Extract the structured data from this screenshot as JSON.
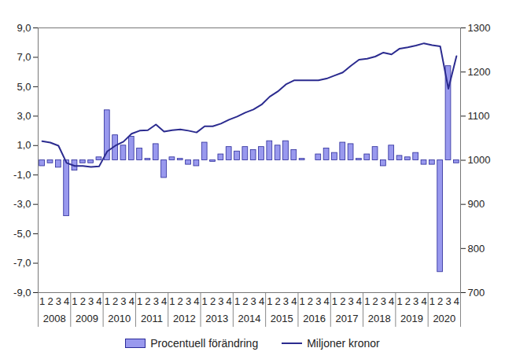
{
  "chart_data": {
    "type": "bar",
    "categories": [
      "1",
      "2",
      "3",
      "4",
      "1",
      "2",
      "3",
      "4",
      "1",
      "2",
      "3",
      "4",
      "1",
      "2",
      "3",
      "4",
      "1",
      "2",
      "3",
      "4",
      "1",
      "2",
      "3",
      "4",
      "1",
      "2",
      "3",
      "4",
      "1",
      "2",
      "3",
      "4",
      "1",
      "2",
      "3",
      "4",
      "1",
      "2",
      "3",
      "4",
      "1",
      "2",
      "3",
      "4",
      "1",
      "2",
      "3",
      "4",
      "1",
      "2",
      "3",
      "4"
    ],
    "year_labels": [
      "2008",
      "2009",
      "2010",
      "2011",
      "2012",
      "2013",
      "2014",
      "2015",
      "2016",
      "2017",
      "2018",
      "2019",
      "2020"
    ],
    "series": [
      {
        "name": "Procentuell förändring",
        "type": "bar",
        "color": "#9999ee",
        "values": [
          -0.4,
          -0.2,
          -0.5,
          -3.8,
          -0.7,
          -0.2,
          -0.2,
          0.2,
          3.4,
          1.7,
          1.0,
          1.6,
          0.8,
          0.1,
          1.1,
          -1.2,
          0.2,
          0.1,
          -0.3,
          -0.4,
          1.2,
          -0.1,
          0.4,
          0.9,
          0.6,
          0.9,
          0.7,
          0.9,
          1.3,
          1.0,
          1.3,
          0.7,
          0.1,
          0.0,
          0.4,
          0.8,
          0.5,
          1.2,
          1.1,
          0.1,
          0.4,
          0.9,
          -0.4,
          1.0,
          0.3,
          0.2,
          0.5,
          -0.3,
          -0.3,
          -7.6,
          6.4,
          -0.2
        ]
      },
      {
        "name": "Miljoner kronor",
        "type": "line",
        "axis": "y2",
        "color": "#2b2b8f",
        "values": [
          1043,
          1040,
          1033,
          994,
          987,
          987,
          985,
          986,
          1020,
          1033,
          1042,
          1060,
          1067,
          1068,
          1081,
          1065,
          1068,
          1070,
          1067,
          1063,
          1077,
          1077,
          1083,
          1092,
          1099,
          1108,
          1115,
          1126,
          1144,
          1156,
          1172,
          1181,
          1181,
          1181,
          1181,
          1185,
          1192,
          1199,
          1214,
          1228,
          1230,
          1235,
          1244,
          1240,
          1253,
          1256,
          1260,
          1265,
          1261,
          1258,
          1162,
          1236
        ]
      }
    ],
    "ylim": [
      -9,
      9
    ],
    "yticks": [
      {
        "value": -9,
        "label": "-9,0"
      },
      {
        "value": -7,
        "label": "-7,0"
      },
      {
        "value": -5,
        "label": "-5,0"
      },
      {
        "value": -3,
        "label": "-3,0"
      },
      {
        "value": -1,
        "label": "-1,0"
      },
      {
        "value": 1,
        "label": "1,0"
      },
      {
        "value": 3,
        "label": "3,0"
      },
      {
        "value": 5,
        "label": "5,0"
      },
      {
        "value": 7,
        "label": "7,0"
      },
      {
        "value": 9,
        "label": "9,0"
      }
    ],
    "y2lim": [
      700,
      1300
    ],
    "y2ticks": [
      700,
      800,
      900,
      1000,
      1100,
      1200,
      1300
    ],
    "legend": "bottom",
    "grid": false
  }
}
